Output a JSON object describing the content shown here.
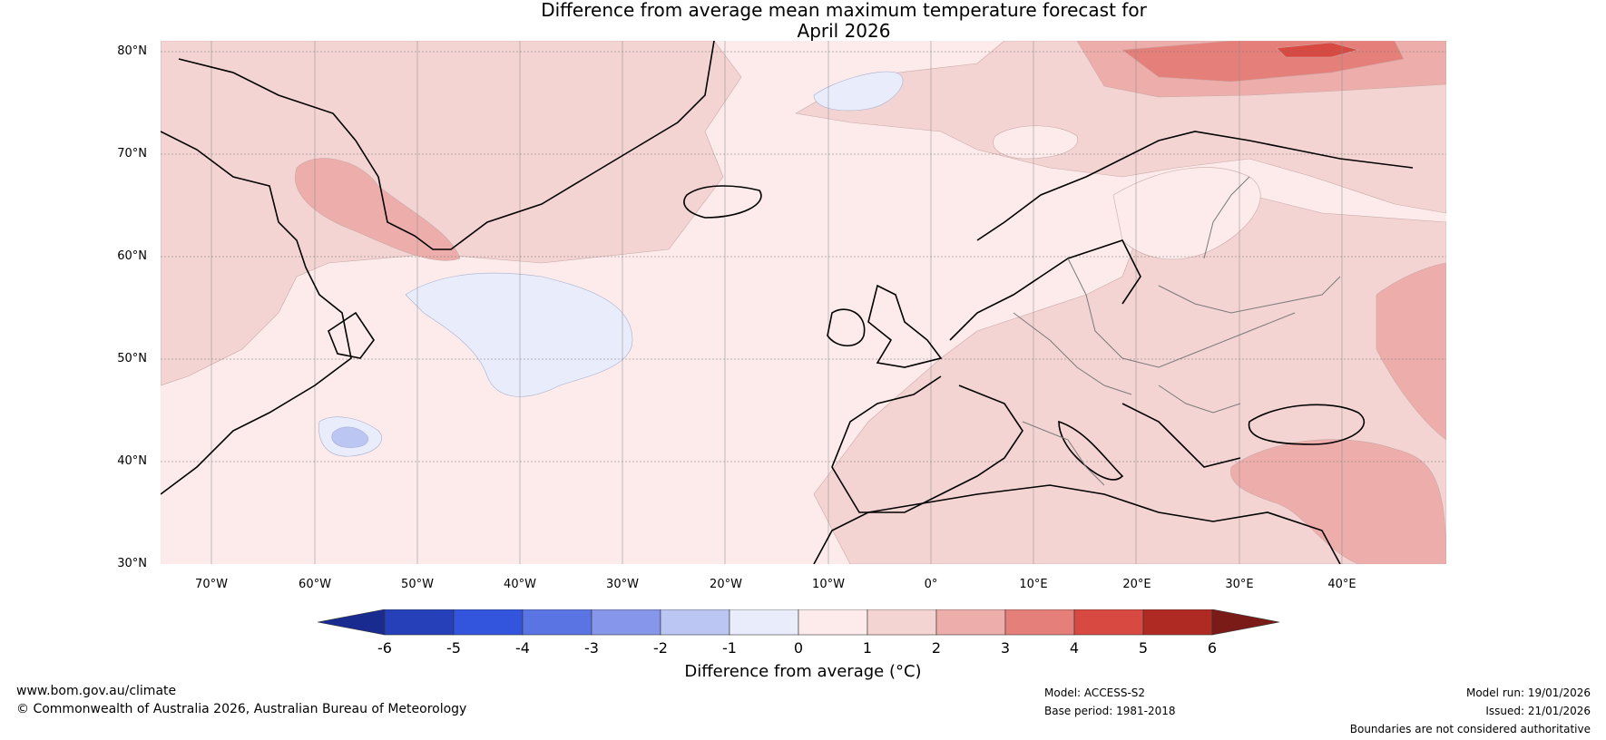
{
  "title": {
    "line1": "Difference from average mean maximum temperature forecast for",
    "line2": "April 2026"
  },
  "lat_labels": [
    "80°N",
    "70°N",
    "60°N",
    "50°N",
    "40°N",
    "30°N"
  ],
  "lon_labels": [
    "70°W",
    "60°W",
    "50°W",
    "40°W",
    "30°W",
    "20°W",
    "10°W",
    "0°",
    "10°E",
    "20°E",
    "30°E",
    "40°E"
  ],
  "legend": {
    "ticks": [
      "-6",
      "-5",
      "-4",
      "-3",
      "-2",
      "-1",
      "0",
      "1",
      "2",
      "3",
      "4",
      "5",
      "6"
    ],
    "label": "Difference from average (°C)",
    "colors": [
      "#1a2b8f",
      "#2540b8",
      "#3355dd",
      "#5b74e4",
      "#8696ea",
      "#bcc6f3",
      "#e8ecfb",
      "#fcebea",
      "#f4d4d3",
      "#edadab",
      "#e57f7a",
      "#d84a41",
      "#b02a24",
      "#7a1b17"
    ]
  },
  "footer": {
    "site": "www.bom.gov.au/climate",
    "copyright": "© Commonwealth of Australia 2026, Australian Bureau of Meteorology",
    "model": "Model: ACCESS-S2",
    "base_period": "Base period: 1981-2018",
    "model_run": "Model run: 19/01/2026",
    "issued": "Issued: 21/01/2026",
    "disclaimer": "Boundaries are not considered authoritative"
  }
}
